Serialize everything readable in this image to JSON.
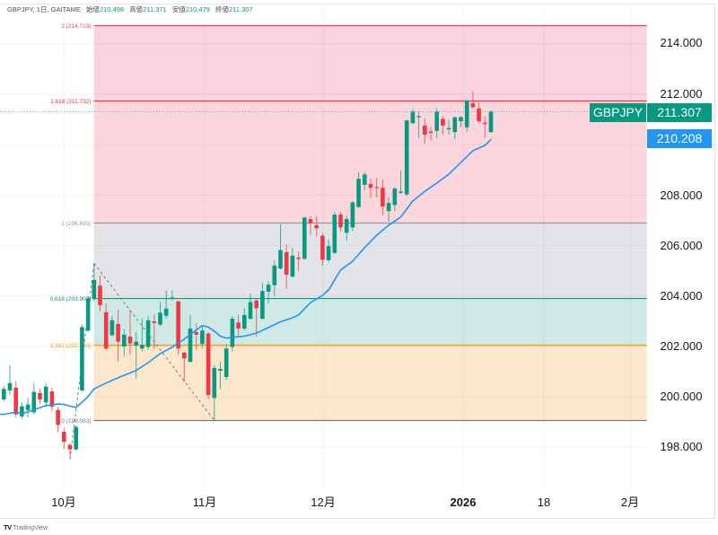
{
  "header": {
    "symbol_line": "GBPJPY, 1日, GAITAME",
    "ohlc": [
      {
        "label": "始値",
        "value": "210.498"
      },
      {
        "label": "高値",
        "value": "211.371"
      },
      {
        "label": "安値",
        "value": "210.479"
      },
      {
        "label": "終値",
        "value": "211.307"
      }
    ]
  },
  "price_axis": {
    "ticks": [
      "214.000",
      "212.000",
      "210.000",
      "208.000",
      "206.000",
      "204.000",
      "202.000",
      "200.000",
      "198.000"
    ]
  },
  "tags": {
    "symbol": "GBPJPY",
    "last_price": "211.307",
    "ma_value": "210.208"
  },
  "time_axis": {
    "labels": [
      "10月",
      "11月",
      "12月",
      "2026",
      "18",
      "2月"
    ]
  },
  "branding": {
    "logo_mark": "TV",
    "logo_text": "TradingView"
  },
  "colors": {
    "up": "#089981",
    "down": "#f23645",
    "ma": "#2196f3",
    "grid": "#f0f3fa",
    "last_price_line": "#089981",
    "anchor_line": "#787b86"
  },
  "chart_data": {
    "type": "candlestick",
    "title": "GBPJPY, 1日, GAITAME",
    "xlabel": "",
    "ylabel": "",
    "ylim": [
      196.34,
      215.59
    ],
    "x_tick_labels": [
      "10月",
      "11月",
      "12月",
      "2026",
      "18",
      "2月"
    ],
    "y_tick_labels": [
      "214.000",
      "212.000",
      "210.000",
      "208.000",
      "206.000",
      "204.000",
      "202.000",
      "200.000",
      "198.000"
    ],
    "grid": true,
    "last_price": 211.307,
    "candles_ohlc": [
      [
        199.9,
        200.44,
        199.83,
        200.32
      ],
      [
        200.26,
        201.26,
        200.08,
        200.55
      ],
      [
        200.37,
        200.61,
        199.19,
        199.31
      ],
      [
        199.23,
        199.79,
        199.13,
        199.63
      ],
      [
        199.48,
        199.97,
        199.19,
        199.7
      ],
      [
        199.39,
        200.55,
        199.31,
        200.2
      ],
      [
        200.16,
        200.33,
        199.72,
        199.9
      ],
      [
        199.78,
        200.55,
        199.61,
        200.41
      ],
      [
        200.22,
        200.37,
        199.43,
        199.61
      ],
      [
        199.48,
        199.61,
        198.6,
        198.89
      ],
      [
        198.62,
        198.77,
        197.94,
        198.22
      ],
      [
        198.1,
        198.18,
        197.53,
        197.92
      ],
      [
        197.92,
        198.89,
        197.88,
        198.81
      ],
      [
        200.26,
        202.87,
        200.2,
        202.77
      ],
      [
        202.63,
        203.99,
        202.57,
        203.91
      ],
      [
        203.88,
        205.3,
        203.82,
        204.64
      ],
      [
        204.41,
        204.82,
        203.4,
        203.64
      ],
      [
        203.36,
        203.71,
        201.86,
        201.92
      ],
      [
        202.45,
        203.22,
        202.39,
        203.04
      ],
      [
        202.89,
        203.46,
        201.4,
        202.19
      ],
      [
        202.0,
        202.69,
        201.62,
        202.47
      ],
      [
        202.39,
        203.46,
        201.68,
        202.12
      ],
      [
        202.04,
        202.57,
        200.73,
        202.19
      ],
      [
        201.92,
        203.1,
        201.8,
        202.06
      ],
      [
        201.98,
        203.22,
        201.86,
        203.04
      ],
      [
        203.0,
        203.28,
        201.92,
        202.93
      ],
      [
        202.87,
        203.76,
        202.81,
        203.34
      ],
      [
        203.22,
        204.23,
        203.1,
        203.5
      ],
      [
        203.89,
        204.23,
        203.82,
        203.94
      ],
      [
        203.79,
        203.82,
        201.68,
        201.92
      ],
      [
        201.76,
        201.8,
        200.61,
        201.53
      ],
      [
        201.39,
        203.25,
        201.38,
        202.71
      ],
      [
        202.57,
        202.93,
        201.86,
        202.47
      ],
      [
        202.1,
        202.81,
        201.92,
        202.63
      ],
      [
        202.51,
        202.57,
        199.9,
        200.08
      ],
      [
        199.96,
        201.26,
        199.06,
        201.15
      ],
      [
        201.04,
        201.39,
        200.32,
        201.11
      ],
      [
        200.79,
        202.1,
        200.67,
        201.92
      ],
      [
        201.98,
        203.22,
        201.8,
        203.1
      ],
      [
        202.95,
        203.26,
        202.39,
        202.71
      ],
      [
        202.71,
        203.52,
        202.63,
        203.25
      ],
      [
        203.1,
        204.09,
        203.07,
        203.76
      ],
      [
        203.82,
        203.88,
        202.39,
        203.52
      ],
      [
        203.1,
        204.53,
        203.07,
        204.2
      ],
      [
        204.17,
        204.59,
        203.7,
        204.45
      ],
      [
        204.43,
        205.42,
        203.99,
        205.21
      ],
      [
        205.09,
        206.84,
        205.06,
        205.82
      ],
      [
        205.74,
        206.05,
        204.29,
        204.85
      ],
      [
        204.77,
        205.92,
        204.73,
        205.6
      ],
      [
        205.52,
        205.77,
        205.0,
        205.47
      ],
      [
        205.48,
        207.14,
        205.44,
        207.11
      ],
      [
        207.05,
        207.17,
        206.42,
        206.9
      ],
      [
        206.81,
        207.17,
        206.37,
        206.69
      ],
      [
        206.39,
        206.49,
        205.2,
        205.44
      ],
      [
        205.42,
        206.25,
        205.36,
        205.98
      ],
      [
        205.71,
        207.34,
        205.66,
        207.23
      ],
      [
        207.23,
        207.34,
        206.55,
        206.72
      ],
      [
        206.51,
        207.2,
        206.19,
        207.05
      ],
      [
        206.72,
        207.77,
        206.58,
        207.71
      ],
      [
        207.53,
        208.92,
        207.49,
        208.65
      ],
      [
        208.41,
        208.92,
        208.2,
        208.82
      ],
      [
        208.44,
        208.68,
        207.91,
        208.29
      ],
      [
        208.32,
        208.68,
        207.91,
        208.28
      ],
      [
        208.29,
        208.62,
        207.2,
        207.55
      ],
      [
        207.37,
        207.91,
        206.96,
        207.69
      ],
      [
        207.61,
        208.32,
        207.37,
        208.26
      ],
      [
        208.09,
        208.98,
        208.05,
        208.14
      ],
      [
        208.03,
        210.99,
        207.97,
        210.96
      ],
      [
        210.85,
        211.41,
        210.82,
        211.31
      ],
      [
        211.09,
        211.32,
        210.26,
        211.13
      ],
      [
        210.76,
        211.05,
        210.04,
        210.4
      ],
      [
        210.52,
        210.7,
        210.16,
        210.47
      ],
      [
        210.55,
        211.44,
        210.26,
        211.31
      ],
      [
        211.02,
        211.14,
        210.42,
        210.76
      ],
      [
        210.61,
        210.99,
        210.4,
        210.66
      ],
      [
        210.5,
        211.11,
        210.22,
        211.09
      ],
      [
        210.93,
        211.14,
        210.69,
        211.09
      ],
      [
        210.69,
        211.79,
        210.52,
        211.74
      ],
      [
        211.64,
        212.12,
        211.44,
        211.49
      ],
      [
        211.44,
        211.68,
        210.87,
        210.93
      ],
      [
        210.87,
        211.11,
        210.28,
        210.82
      ],
      [
        210.498,
        211.371,
        210.479,
        211.307
      ]
    ],
    "moving_average": {
      "last_value": 210.208,
      "points": [
        [
          0,
          199.31
        ],
        [
          2,
          199.4
        ],
        [
          3,
          199.33
        ],
        [
          5,
          199.49
        ],
        [
          7,
          199.66
        ],
        [
          9,
          199.72
        ],
        [
          10,
          199.7
        ],
        [
          12,
          199.58
        ],
        [
          13,
          199.79
        ],
        [
          14,
          200.01
        ],
        [
          15,
          200.32
        ],
        [
          17,
          200.55
        ],
        [
          19,
          200.76
        ],
        [
          22,
          201.05
        ],
        [
          24,
          201.36
        ],
        [
          26,
          201.72
        ],
        [
          28,
          201.97
        ],
        [
          30,
          202.29
        ],
        [
          32,
          202.66
        ],
        [
          33,
          202.83
        ],
        [
          34,
          202.77
        ],
        [
          35,
          202.61
        ],
        [
          36,
          202.41
        ],
        [
          37,
          202.33
        ],
        [
          38,
          202.36
        ],
        [
          40,
          202.41
        ],
        [
          42,
          202.53
        ],
        [
          44,
          202.75
        ],
        [
          46,
          202.98
        ],
        [
          48,
          203.14
        ],
        [
          49,
          203.25
        ],
        [
          51,
          203.74
        ],
        [
          53,
          204.03
        ],
        [
          54,
          204.24
        ],
        [
          56,
          205.03
        ],
        [
          58,
          205.38
        ],
        [
          60,
          205.92
        ],
        [
          62,
          206.41
        ],
        [
          64,
          206.81
        ],
        [
          66,
          207.13
        ],
        [
          68,
          207.77
        ],
        [
          70,
          208.15
        ],
        [
          72,
          208.48
        ],
        [
          74,
          208.83
        ],
        [
          76,
          209.3
        ],
        [
          78,
          209.76
        ],
        [
          80,
          209.97
        ],
        [
          81,
          210.208
        ]
      ]
    },
    "fib": {
      "kind": "trend-based fib extension",
      "anchors": [
        [
          11,
          197.53
        ],
        [
          15,
          205.3
        ],
        [
          35,
          199.063
        ]
      ],
      "levels": [
        {
          "ratio": "2",
          "price": 214.723,
          "label": "2 (214.723)",
          "color": "#ec407a",
          "fill": "#f9d3df"
        },
        {
          "ratio": "1.618",
          "price": 211.732,
          "label": "1.618 (211.732)",
          "color": "#f23645",
          "fill": "#fbd6dc"
        },
        {
          "ratio": "1",
          "price": 206.893,
          "label": "1 (206.893)",
          "color": "#9598a1",
          "fill": "#e3e4e8"
        },
        {
          "ratio": "0.618",
          "price": 203.902,
          "label": "0.618 (203.902)",
          "color": "#089981",
          "fill": "#cfeae5"
        },
        {
          "ratio": "0.382",
          "price": 202.054,
          "label": "0.382 (202.054)",
          "color": "#ff9800",
          "fill": "#fde7cc"
        },
        {
          "ratio": "0",
          "price": 199.063,
          "label": "0 (199.063)",
          "color": "#787b86",
          "fill": null
        }
      ]
    }
  }
}
